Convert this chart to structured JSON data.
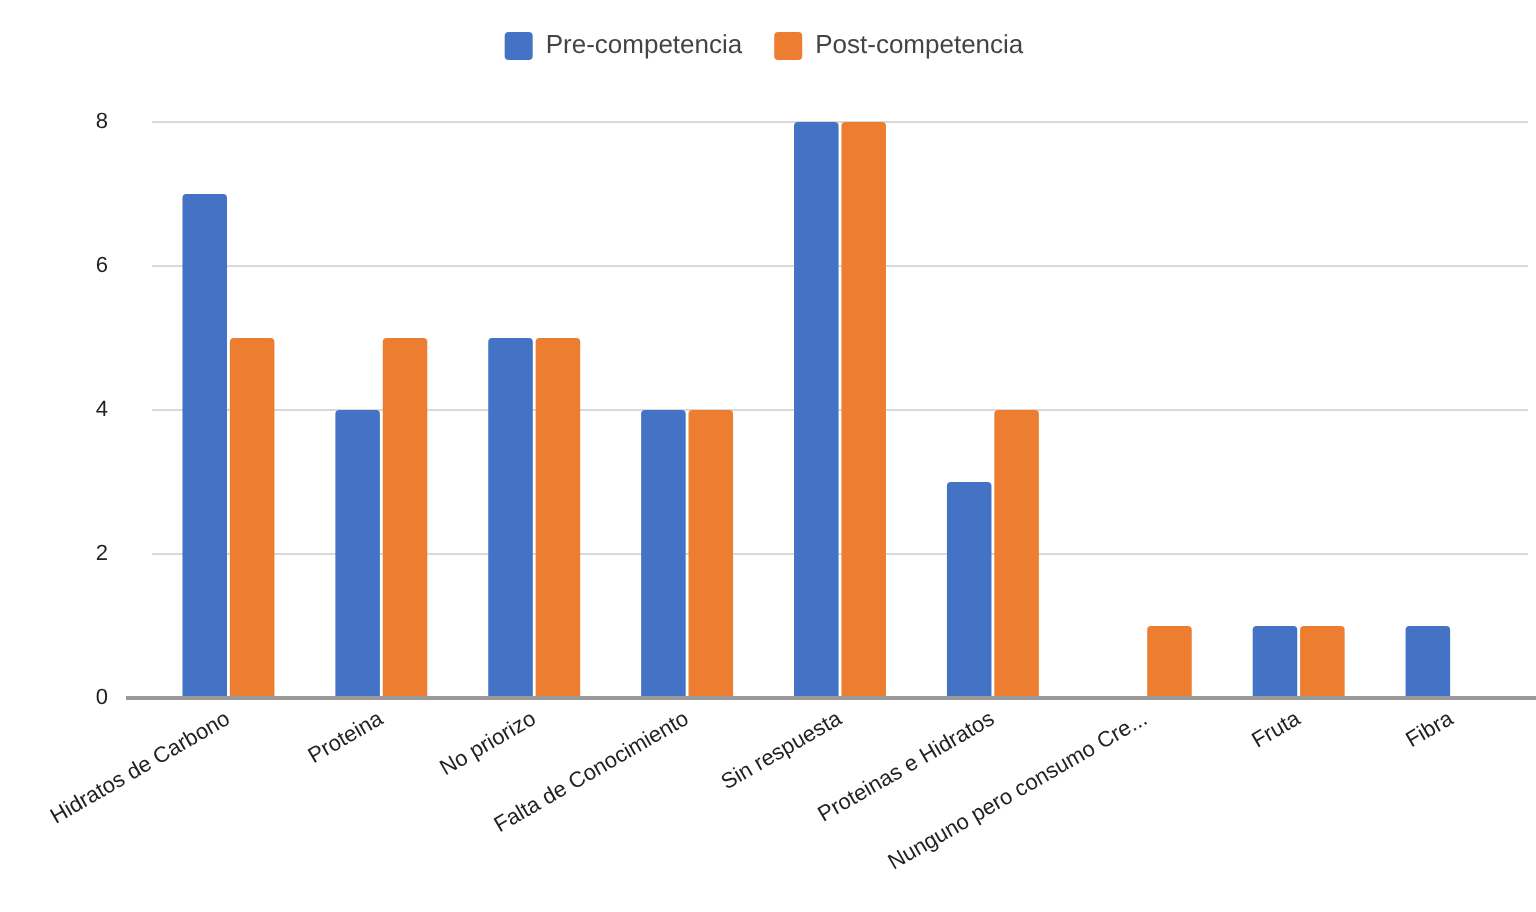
{
  "chart_data": {
    "type": "bar",
    "categories": [
      "Hidratos de Carbono",
      "Proteina",
      "No priorizo",
      "Falta de Conocimiento",
      "Sin respuesta",
      "Proteinas e Hidratos",
      "Nunguno pero consumo Cre...",
      "Fruta",
      "Fibra"
    ],
    "series": [
      {
        "name": "Pre-competencia",
        "color": "#4472c4",
        "values": [
          7,
          4,
          5,
          4,
          8,
          3,
          null,
          1,
          1
        ]
      },
      {
        "name": "Post-competencia",
        "color": "#ed7d31",
        "values": [
          5,
          5,
          5,
          4,
          8,
          4,
          1,
          1,
          null
        ]
      }
    ],
    "ylim": [
      0,
      8
    ],
    "yticks": [
      0,
      2,
      4,
      6,
      8
    ],
    "grid": "y",
    "legend": "top"
  }
}
